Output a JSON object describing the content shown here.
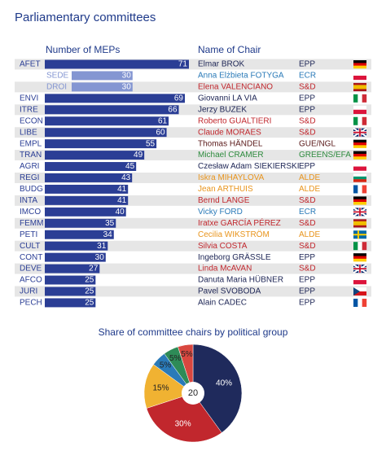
{
  "title": "Parliamentary committees",
  "chart_data": [
    {
      "type": "bar",
      "orientation": "horizontal",
      "value_header": "Number of MEPs",
      "chair_header": "Name of Chair",
      "categories": [
        "AFET",
        "SEDE",
        "DROI",
        "ENVI",
        "ITRE",
        "ECON",
        "LIBE",
        "EMPL",
        "TRAN",
        "AGRI",
        "REGI",
        "BUDG",
        "INTA",
        "IMCO",
        "FEMM",
        "PETI",
        "CULT",
        "CONT",
        "DEVE",
        "AFCO",
        "JURI",
        "PECH"
      ],
      "values": [
        71,
        30,
        30,
        69,
        66,
        61,
        60,
        55,
        49,
        45,
        43,
        41,
        41,
        40,
        35,
        34,
        31,
        30,
        27,
        25,
        25,
        25
      ],
      "bar_colors": [
        "#2b3e95",
        "#8496d2",
        "#8496d2",
        "#2b3e95",
        "#2b3e95",
        "#2b3e95",
        "#2b3e95",
        "#2b3e95",
        "#2b3e95",
        "#2b3e95",
        "#2b3e95",
        "#2b3e95",
        "#2b3e95",
        "#2b3e95",
        "#2b3e95",
        "#2b3e95",
        "#2b3e95",
        "#2b3e95",
        "#2b3e95",
        "#2b3e95",
        "#2b3e95",
        "#2b3e95"
      ],
      "chairs": [
        "Elmar BROK",
        "Anna Elżbieta FOTYGA",
        "Elena VALENCIANO",
        "Giovanni LA VIA",
        "Jerzy BUZEK",
        "Roberto GUALTIERI",
        "Claude MORAES",
        "Thomas HÄNDEL",
        "Michael CRAMER",
        "Czesław Adam SIEKIERSKI",
        "Iskra MIHAYLOVA",
        "Jean ARTHUIS",
        "Bernd LANGE",
        "Vicky FORD",
        "Iratxe GARCÍA PÉREZ",
        "Cecilia WIKSTRÖM",
        "Silvia COSTA",
        "Ingeborg GRÄSSLE",
        "Linda McAVAN",
        "Danuta Maria HÜBNER",
        "Pavel SVOBODA",
        "Alain CADEC"
      ],
      "groups": [
        "EPP",
        "ECR",
        "S&D",
        "EPP",
        "EPP",
        "S&D",
        "S&D",
        "GUE/NGL",
        "GREENS/EFA",
        "EPP",
        "ALDE",
        "ALDE",
        "S&D",
        "ECR",
        "S&D",
        "ALDE",
        "S&D",
        "EPP",
        "S&D",
        "EPP",
        "EPP",
        "EPP"
      ],
      "row_colors": [
        "#1c2454",
        "#2a7ab8",
        "#c1272d",
        "#1c2454",
        "#1c2454",
        "#c1272d",
        "#c1272d",
        "#5a1a1a",
        "#2e8b3e",
        "#1c2454",
        "#e8941c",
        "#e8941c",
        "#c1272d",
        "#2a7ab8",
        "#c1272d",
        "#e8941c",
        "#c1272d",
        "#1c2454",
        "#c1272d",
        "#1c2454",
        "#1c2454",
        "#1c2454"
      ]
    },
    {
      "type": "pie",
      "title": "Share of committee chairs by political group",
      "center_label": "20",
      "values": [
        40,
        30,
        15,
        5,
        5,
        5
      ],
      "value_labels": [
        "40%",
        "30%",
        "15%",
        "5%",
        "5%",
        "5%"
      ],
      "colors": [
        "#1f2a5c",
        "#c1272d",
        "#f0b232",
        "#2a7ab8",
        "#2e8b57",
        "#d9473f"
      ]
    }
  ]
}
